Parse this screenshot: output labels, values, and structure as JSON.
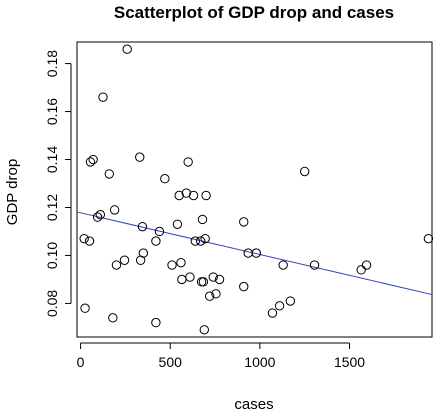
{
  "chart_data": {
    "type": "scatter",
    "title": "Scatterplot of GDP drop and cases",
    "xlabel": "cases",
    "ylabel": "GDP drop",
    "xlim": [
      -20,
      1960
    ],
    "ylim": [
      0.066,
      0.189
    ],
    "xticks": [
      0,
      500,
      1000,
      1500
    ],
    "yticks": [
      0.08,
      0.1,
      0.12,
      0.14,
      0.16,
      0.18
    ],
    "ytick_labels": [
      "0.08",
      "0.10",
      "0.12",
      "0.14",
      "0.16",
      "0.18"
    ],
    "grid": false,
    "legend": "none",
    "point_color": "#000000",
    "trendline": {
      "color": "#3344bb",
      "intercept": 0.1178,
      "slope": -1.74e-05
    },
    "points": [
      {
        "x": 20,
        "y": 0.107
      },
      {
        "x": 25,
        "y": 0.078
      },
      {
        "x": 50,
        "y": 0.106
      },
      {
        "x": 55,
        "y": 0.139
      },
      {
        "x": 70,
        "y": 0.14
      },
      {
        "x": 95,
        "y": 0.116
      },
      {
        "x": 110,
        "y": 0.117
      },
      {
        "x": 125,
        "y": 0.166
      },
      {
        "x": 160,
        "y": 0.134
      },
      {
        "x": 180,
        "y": 0.074
      },
      {
        "x": 190,
        "y": 0.119
      },
      {
        "x": 200,
        "y": 0.096
      },
      {
        "x": 245,
        "y": 0.098
      },
      {
        "x": 260,
        "y": 0.186
      },
      {
        "x": 330,
        "y": 0.141
      },
      {
        "x": 335,
        "y": 0.098
      },
      {
        "x": 345,
        "y": 0.112
      },
      {
        "x": 350,
        "y": 0.101
      },
      {
        "x": 420,
        "y": 0.106
      },
      {
        "x": 420,
        "y": 0.072
      },
      {
        "x": 440,
        "y": 0.11
      },
      {
        "x": 470,
        "y": 0.132
      },
      {
        "x": 510,
        "y": 0.096
      },
      {
        "x": 540,
        "y": 0.113
      },
      {
        "x": 550,
        "y": 0.125
      },
      {
        "x": 560,
        "y": 0.097
      },
      {
        "x": 565,
        "y": 0.09
      },
      {
        "x": 590,
        "y": 0.126
      },
      {
        "x": 600,
        "y": 0.139
      },
      {
        "x": 610,
        "y": 0.091
      },
      {
        "x": 630,
        "y": 0.125
      },
      {
        "x": 640,
        "y": 0.106
      },
      {
        "x": 670,
        "y": 0.106
      },
      {
        "x": 675,
        "y": 0.089
      },
      {
        "x": 680,
        "y": 0.115
      },
      {
        "x": 685,
        "y": 0.089
      },
      {
        "x": 690,
        "y": 0.069
      },
      {
        "x": 695,
        "y": 0.107
      },
      {
        "x": 700,
        "y": 0.125
      },
      {
        "x": 720,
        "y": 0.083
      },
      {
        "x": 740,
        "y": 0.091
      },
      {
        "x": 755,
        "y": 0.084
      },
      {
        "x": 775,
        "y": 0.09
      },
      {
        "x": 910,
        "y": 0.114
      },
      {
        "x": 910,
        "y": 0.087
      },
      {
        "x": 935,
        "y": 0.101
      },
      {
        "x": 980,
        "y": 0.101
      },
      {
        "x": 1070,
        "y": 0.076
      },
      {
        "x": 1110,
        "y": 0.079
      },
      {
        "x": 1130,
        "y": 0.096
      },
      {
        "x": 1170,
        "y": 0.081
      },
      {
        "x": 1250,
        "y": 0.135
      },
      {
        "x": 1305,
        "y": 0.096
      },
      {
        "x": 1565,
        "y": 0.094
      },
      {
        "x": 1595,
        "y": 0.096
      },
      {
        "x": 1940,
        "y": 0.107
      }
    ]
  }
}
